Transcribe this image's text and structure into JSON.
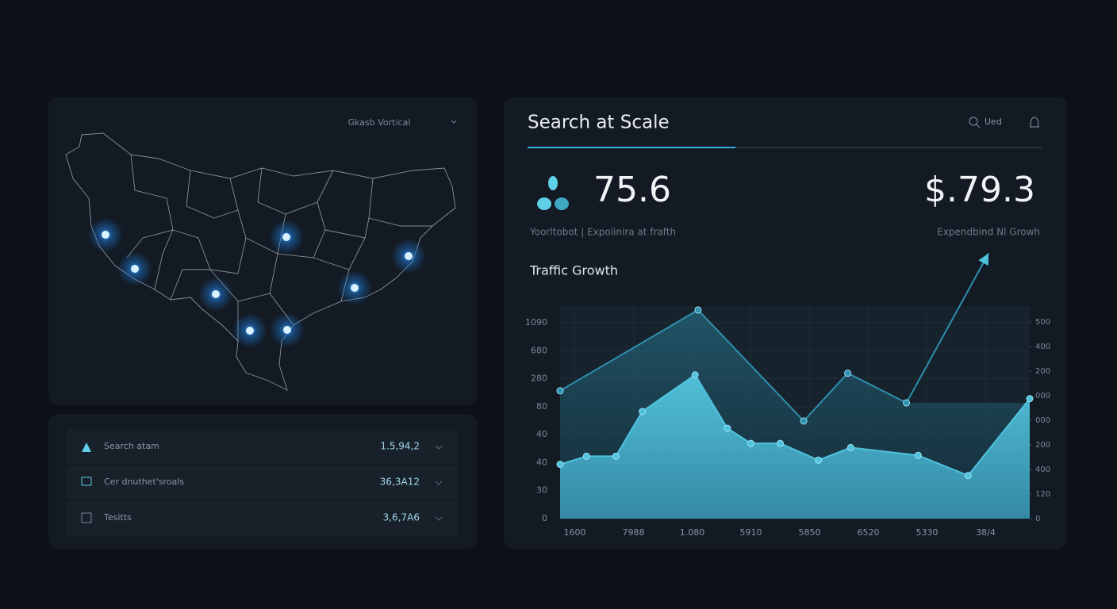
{
  "map_panel": {
    "label": "Gkasb Vortical"
  },
  "list": {
    "rows": [
      {
        "label": "Search atam",
        "value": "1.5,94,2"
      },
      {
        "label": "Cer dnuthet'sroals",
        "value": "36,3A12"
      },
      {
        "label": "Tesitts",
        "value": "3,6,7A6"
      }
    ]
  },
  "header": {
    "title": "Search at Scale",
    "search": "Ued"
  },
  "stats": [
    {
      "value": "75.6",
      "caption": "Yoorltobot | Expolinira at frafth"
    },
    {
      "value": "$.79.3",
      "caption": "Expendbind Nl Growh"
    }
  ],
  "chart_data": {
    "type": "area",
    "title": "Traffic Growth",
    "grid": true,
    "xlim": [
      0,
      16
    ],
    "xticks": [
      {
        "value": 0.5,
        "label": "1600"
      },
      {
        "value": 2.5,
        "label": "7988"
      },
      {
        "value": 4.5,
        "label": "1.080"
      },
      {
        "value": 6.5,
        "label": "5910"
      },
      {
        "value": 8.5,
        "label": "5850"
      },
      {
        "value": 10.5,
        "label": "6520"
      },
      {
        "value": 12.5,
        "label": "5330"
      },
      {
        "value": 14.5,
        "label": "38/4"
      }
    ],
    "ylim": [
      0,
      7.6
    ],
    "yticks": [
      {
        "value": 7,
        "label": "1090"
      },
      {
        "value": 6,
        "label": "680"
      },
      {
        "value": 5,
        "label": "280"
      },
      {
        "value": 4,
        "label": "80"
      },
      {
        "value": 3,
        "label": "40"
      },
      {
        "value": 2,
        "label": "40"
      },
      {
        "value": 1,
        "label": "30"
      },
      0
    ],
    "y2lim": [
      0,
      8.65
    ],
    "y2ticks": [
      {
        "value": 8,
        "label": "500"
      },
      {
        "value": 7,
        "label": "400"
      },
      {
        "value": 6,
        "label": "200"
      },
      {
        "value": 5,
        "label": "000"
      },
      {
        "value": 4,
        "label": "000"
      },
      {
        "value": 3,
        "label": "200"
      },
      {
        "value": 2,
        "label": "400"
      },
      {
        "value": 1,
        "label": "120"
      },
      0
    ],
    "series": [
      {
        "color": "#2f8fae",
        "x": [
          0,
          4.7,
          8.3,
          9.8,
          11.8,
          14.6
        ],
        "values": [
          4.57,
          7.46,
          3.49,
          5.2,
          4.14,
          9.49
        ]
      },
      {
        "color": "#4fc3de",
        "x": [
          0,
          0.9,
          1.9,
          2.8,
          4.6,
          5.7,
          6.5,
          7.5,
          8.8,
          9.9,
          12.2,
          13.9,
          16
        ],
        "values": [
          1.94,
          2.23,
          2.23,
          3.83,
          5.14,
          3.23,
          2.69,
          2.69,
          2.09,
          2.54,
          2.26,
          1.54,
          4.29
        ]
      }
    ]
  }
}
